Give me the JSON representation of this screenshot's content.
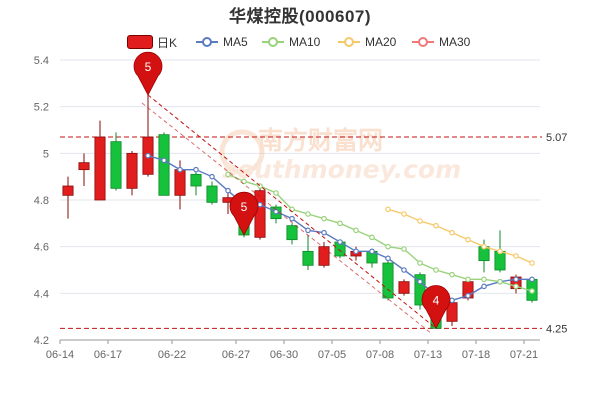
{
  "title": "华煤控股(000607)",
  "legend": [
    {
      "label": "日K",
      "color": "#e11d1d",
      "type": "candle"
    },
    {
      "label": "MA5",
      "color": "#5b7bc0",
      "type": "line"
    },
    {
      "label": "MA10",
      "color": "#9ad27c",
      "type": "line"
    },
    {
      "label": "MA20",
      "color": "#f5c96a",
      "type": "line"
    },
    {
      "label": "MA30",
      "color": "#f07878",
      "type": "line"
    }
  ],
  "watermark": {
    "cn": "南方财富网",
    "en": "southmoney.com"
  },
  "colors": {
    "up": "#e11d1d",
    "down": "#16c23c",
    "grid": "#e3e6ee",
    "ref": "#c41010"
  },
  "chart_data": {
    "type": "candlestick",
    "x_ticks": [
      "06-14",
      "06-17",
      "06-22",
      "06-27",
      "06-30",
      "07-05",
      "07-08",
      "07-13",
      "07-18",
      "07-21"
    ],
    "y_ticks": [
      "4.2",
      "4.4",
      "4.6",
      "4.8",
      "5",
      "5.2",
      "5.4"
    ],
    "ylim": [
      4.2,
      5.4
    ],
    "candles": [
      {
        "o": 4.82,
        "c": 4.86,
        "h": 4.9,
        "l": 4.72
      },
      {
        "o": 4.93,
        "c": 4.96,
        "h": 5.0,
        "l": 4.86
      },
      {
        "o": 4.8,
        "c": 5.07,
        "h": 5.14,
        "l": 4.8
      },
      {
        "o": 5.05,
        "c": 4.85,
        "h": 5.09,
        "l": 4.84
      },
      {
        "o": 4.85,
        "c": 5.0,
        "h": 5.01,
        "l": 4.82
      },
      {
        "o": 4.91,
        "c": 5.07,
        "h": 5.25,
        "l": 4.9
      },
      {
        "o": 5.08,
        "c": 4.82,
        "h": 5.09,
        "l": 4.82
      },
      {
        "o": 4.82,
        "c": 4.93,
        "h": 4.97,
        "l": 4.76
      },
      {
        "o": 4.91,
        "c": 4.86,
        "h": 4.92,
        "l": 4.82
      },
      {
        "o": 4.86,
        "c": 4.79,
        "h": 4.88,
        "l": 4.78
      },
      {
        "o": 4.79,
        "c": 4.81,
        "h": 4.84,
        "l": 4.74
      },
      {
        "o": 4.78,
        "c": 4.65,
        "h": 4.81,
        "l": 4.64
      },
      {
        "o": 4.64,
        "c": 4.84,
        "h": 4.85,
        "l": 4.63
      },
      {
        "o": 4.77,
        "c": 4.72,
        "h": 4.78,
        "l": 4.7
      },
      {
        "o": 4.69,
        "c": 4.63,
        "h": 4.7,
        "l": 4.61
      },
      {
        "o": 4.58,
        "c": 4.52,
        "h": 4.65,
        "l": 4.5
      },
      {
        "o": 4.52,
        "c": 4.6,
        "h": 4.62,
        "l": 4.51
      },
      {
        "o": 4.62,
        "c": 4.56,
        "h": 4.63,
        "l": 4.55
      },
      {
        "o": 4.56,
        "c": 4.58,
        "h": 4.6,
        "l": 4.54
      },
      {
        "o": 4.58,
        "c": 4.53,
        "h": 4.59,
        "l": 4.51
      },
      {
        "o": 4.53,
        "c": 4.38,
        "h": 4.54,
        "l": 4.37
      },
      {
        "o": 4.4,
        "c": 4.45,
        "h": 4.46,
        "l": 4.39
      },
      {
        "o": 4.48,
        "c": 4.35,
        "h": 4.49,
        "l": 4.33
      },
      {
        "o": 4.38,
        "c": 4.25,
        "h": 4.39,
        "l": 4.25
      },
      {
        "o": 4.28,
        "c": 4.36,
        "h": 4.38,
        "l": 4.26
      },
      {
        "o": 4.38,
        "c": 4.45,
        "h": 4.46,
        "l": 4.37
      },
      {
        "o": 4.6,
        "c": 4.54,
        "h": 4.63,
        "l": 4.49
      },
      {
        "o": 4.58,
        "c": 4.5,
        "h": 4.67,
        "l": 4.49
      },
      {
        "o": 4.42,
        "c": 4.47,
        "h": 4.48,
        "l": 4.4
      },
      {
        "o": 4.46,
        "c": 4.37,
        "h": 4.47,
        "l": 4.36
      }
    ],
    "ma5": [
      null,
      null,
      null,
      null,
      null,
      4.99,
      4.97,
      4.93,
      4.93,
      4.9,
      4.84,
      4.78,
      4.78,
      4.75,
      4.72,
      4.67,
      4.66,
      4.62,
      4.58,
      4.58,
      4.55,
      4.5,
      4.45,
      4.39,
      4.37,
      4.39,
      4.43,
      4.45,
      4.46,
      4.46
    ],
    "ma10": [
      null,
      null,
      null,
      null,
      null,
      null,
      null,
      null,
      null,
      null,
      4.91,
      4.88,
      4.86,
      4.83,
      4.76,
      4.74,
      4.72,
      4.7,
      4.67,
      4.64,
      4.6,
      4.59,
      4.53,
      4.5,
      4.48,
      4.46,
      4.46,
      4.45,
      4.43,
      4.41
    ],
    "ma20": [
      null,
      null,
      null,
      null,
      null,
      null,
      null,
      null,
      null,
      null,
      null,
      null,
      null,
      null,
      null,
      null,
      null,
      null,
      null,
      null,
      4.76,
      4.74,
      4.71,
      4.69,
      4.66,
      4.63,
      4.6,
      4.58,
      4.56,
      4.53
    ],
    "ma30": [],
    "ref_lines": [
      {
        "value": 5.07,
        "label": "5.07"
      },
      {
        "value": 4.25,
        "label": "4.25"
      }
    ],
    "markers": [
      {
        "index": 5,
        "label": "5",
        "at": 5.25
      },
      {
        "index": 11,
        "label": "5",
        "at": 4.65
      },
      {
        "index": 23,
        "label": "4",
        "at": 4.25
      }
    ],
    "trend_line": {
      "from_index": 5,
      "from_value": 5.25,
      "to_index": 23,
      "to_value": 4.25
    }
  }
}
